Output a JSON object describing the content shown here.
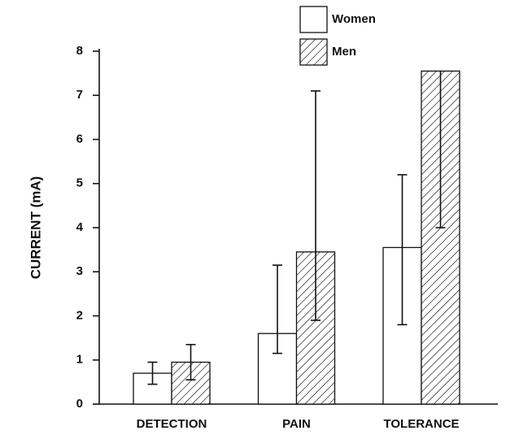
{
  "chart_data": {
    "type": "bar",
    "categories": [
      "DETECTION",
      "PAIN",
      "TOLERANCE"
    ],
    "series": [
      {
        "name": "Women",
        "color": "#ffffff",
        "values": [
          0.7,
          1.6,
          3.55
        ],
        "error_minus": [
          0.25,
          0.45,
          1.75
        ],
        "error_plus": [
          0.25,
          1.55,
          1.65
        ]
      },
      {
        "name": "Men",
        "color": "hatched",
        "values": [
          0.95,
          3.45,
          7.55
        ],
        "error_minus": [
          0.4,
          1.55,
          3.55
        ],
        "error_plus": [
          0.4,
          3.65,
          null
        ]
      }
    ],
    "ylabel": "CURRENT (mA)",
    "ylim": [
      0,
      8
    ],
    "yticks": [
      0,
      1,
      2,
      3,
      4,
      5,
      6,
      7,
      8
    ],
    "legend": "top"
  }
}
